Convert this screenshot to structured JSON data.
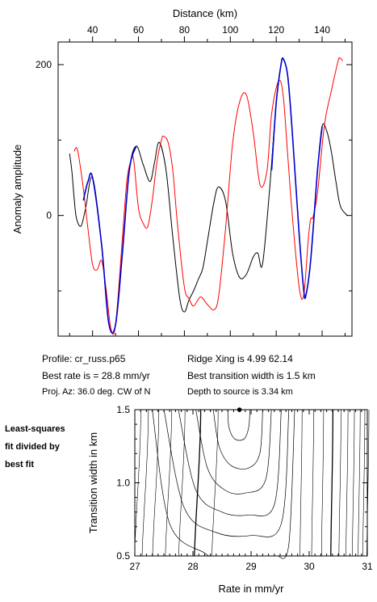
{
  "chart_data": [
    {
      "type": "line",
      "title": "",
      "xlabel": "Distance (km)",
      "ylabel": "Anomaly amplitude",
      "xlim": [
        25,
        153
      ],
      "ylim": [
        -160,
        230
      ],
      "x_ticks": [
        40,
        60,
        80,
        100,
        120,
        140
      ],
      "y_ticks": [
        0,
        200
      ],
      "series": [
        {
          "color": "#000000",
          "x": [
            30,
            31,
            32,
            33,
            35,
            37,
            40,
            44,
            47,
            50,
            53,
            56,
            59,
            62,
            65,
            67,
            69,
            72,
            75,
            78,
            80,
            82,
            84,
            86,
            88,
            90,
            93,
            95,
            98,
            101,
            104,
            107,
            110,
            112,
            114,
            117,
            120,
            122,
            123,
            125,
            127,
            130,
            132,
            133,
            135,
            138,
            140,
            142,
            144,
            146,
            148,
            151
          ],
          "y": [
            82,
            58,
            22,
            -4,
            -14,
            10,
            50,
            -40,
            -142,
            -145,
            -50,
            60,
            92,
            68,
            45,
            70,
            97,
            60,
            -30,
            -110,
            -128,
            -112,
            -100,
            -85,
            -70,
            -35,
            20,
            38,
            18,
            -50,
            -82,
            -78,
            -55,
            -50,
            -65,
            30,
            150,
            198,
            208,
            185,
            110,
            -25,
            -100,
            -105,
            -60,
            60,
            118,
            112,
            85,
            45,
            12,
            0
          ]
        },
        {
          "color": "#ff0000",
          "x": [
            32,
            33,
            34,
            36,
            38,
            40,
            42,
            44,
            46,
            48,
            50,
            53,
            55,
            57,
            58,
            60,
            62,
            64,
            66,
            68,
            70,
            71,
            73,
            75,
            77,
            80,
            82,
            84,
            87,
            90,
            93,
            95,
            98,
            101,
            104,
            107,
            110,
            113,
            116,
            118,
            121,
            123,
            125,
            127,
            130,
            132,
            134,
            135,
            136,
            138,
            141,
            144,
            147,
            148,
            149
          ],
          "y": [
            85,
            90,
            78,
            35,
            -18,
            -65,
            -72,
            -60,
            -100,
            -150,
            -145,
            -30,
            48,
            75,
            72,
            10,
            -10,
            -15,
            20,
            70,
            100,
            105,
            96,
            58,
            -12,
            -95,
            -110,
            -120,
            -108,
            -118,
            -125,
            -105,
            -15,
            95,
            150,
            160,
            110,
            40,
            60,
            135,
            178,
            160,
            80,
            0,
            -95,
            -105,
            -30,
            -5,
            -2,
            30,
            120,
            165,
            205,
            208,
            205
          ]
        },
        {
          "color": "#0000cc",
          "x": [
            36,
            38,
            40,
            44,
            47,
            50,
            53,
            56,
            59
          ],
          "y": [
            20,
            45,
            50,
            -40,
            -142,
            -145,
            -50,
            60,
            92
          ]
        },
        {
          "color": "#0000cc",
          "x": [
            118,
            120,
            122,
            123,
            125,
            127,
            130,
            132,
            133,
            135,
            138,
            140
          ],
          "y": [
            60,
            150,
            198,
            208,
            185,
            110,
            -25,
            -100,
            -105,
            -60,
            60,
            118
          ]
        }
      ]
    },
    {
      "type": "contour",
      "title": "",
      "xlabel": "Rate in mm/yr",
      "ylabel": "Transition width in km",
      "xlim": [
        27,
        31
      ],
      "ylim": [
        0.5,
        1.5
      ],
      "x_ticks": [
        27,
        28,
        29,
        30,
        31
      ],
      "y_ticks": [
        0.5,
        1.0,
        1.5
      ],
      "best_fit_point": {
        "x": 28.8,
        "y": 1.5
      },
      "vertical_contours_x": [
        28.35,
        28.05,
        27.78,
        27.55,
        27.33,
        27.15,
        27.02,
        29.85,
        30.05,
        30.22,
        30.38,
        30.52,
        30.64,
        30.75,
        30.85,
        30.93,
        31.0
      ],
      "u_contours": [
        {
          "points": [
            [
              28.6,
              1.5
            ],
            [
              28.62,
              1.38
            ],
            [
              28.72,
              1.3
            ],
            [
              28.88,
              1.3
            ],
            [
              28.96,
              1.38
            ],
            [
              28.98,
              1.5
            ]
          ]
        },
        {
          "points": [
            [
              28.35,
              1.5
            ],
            [
              28.45,
              1.25
            ],
            [
              28.65,
              1.12
            ],
            [
              28.95,
              1.1
            ],
            [
              29.15,
              1.2
            ],
            [
              29.2,
              1.5
            ]
          ]
        },
        {
          "points": [
            [
              28.05,
              1.5
            ],
            [
              28.25,
              1.1
            ],
            [
              28.55,
              0.95
            ],
            [
              28.9,
              0.93
            ],
            [
              29.25,
              1.02
            ],
            [
              29.35,
              1.5
            ]
          ]
        },
        {
          "points": [
            [
              27.75,
              1.5
            ],
            [
              28.05,
              0.95
            ],
            [
              28.5,
              0.8
            ],
            [
              28.95,
              0.78
            ],
            [
              29.4,
              0.85
            ],
            [
              29.52,
              1.5
            ]
          ]
        },
        {
          "points": [
            [
              27.5,
              1.5
            ],
            [
              27.85,
              0.83
            ],
            [
              28.4,
              0.66
            ],
            [
              29.0,
              0.64
            ],
            [
              29.52,
              0.72
            ],
            [
              29.65,
              1.5
            ]
          ]
        },
        {
          "points": [
            [
              27.3,
              1.5
            ],
            [
              27.6,
              0.72
            ],
            [
              28.2,
              0.52
            ],
            [
              28.3,
              0.5
            ]
          ]
        },
        {
          "points": [
            [
              29.45,
              0.5
            ],
            [
              29.65,
              0.58
            ],
            [
              29.75,
              1.5
            ]
          ]
        }
      ]
    }
  ],
  "info": {
    "profile": "Profile: cr_russ.p65",
    "best_rate": "Best rate is = 28.8 mm/yr",
    "proj_az": "Proj. Az: 36.0 deg. CW of N",
    "ridge_xing": "Ridge Xing is 4.99 62.14",
    "best_transition": "Best transition width is 1.5 km",
    "depth_to_source": "Depth to source is   3.34 km"
  },
  "side_note": {
    "line1": "Least-squares",
    "line2": "fit divided by",
    "line3": "best fit"
  }
}
